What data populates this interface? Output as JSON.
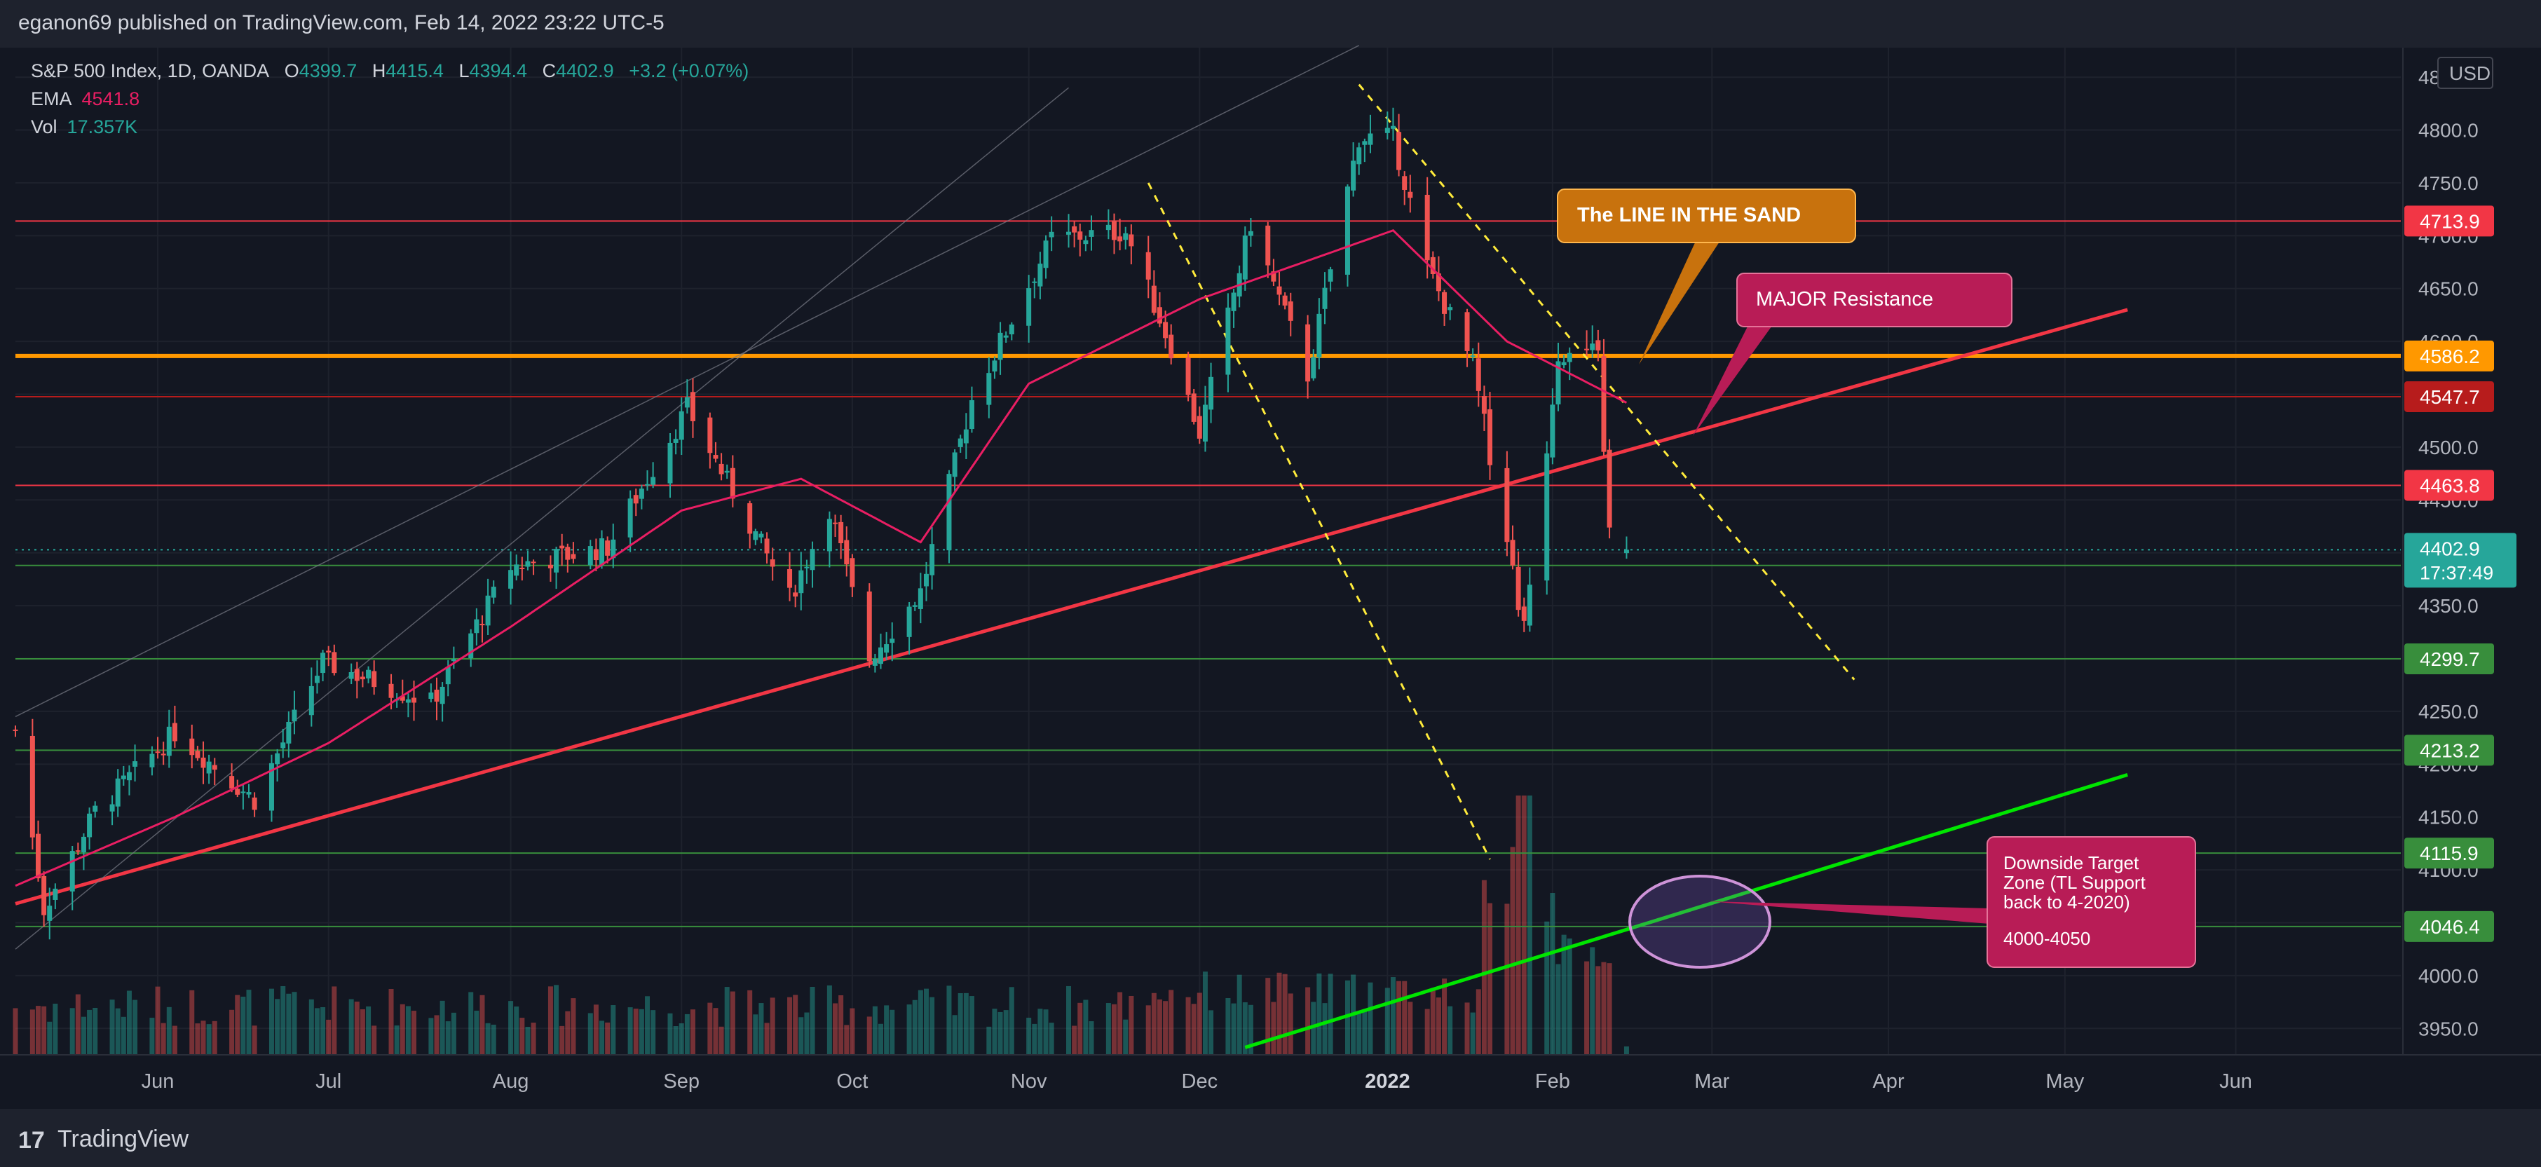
{
  "header": {
    "publisher": "eganon69 published on TradingView.com, Feb 14, 2022 23:22 UTC-5"
  },
  "legend": {
    "symbol": "S&P 500 Index, 1D, OANDA",
    "o_label": "O",
    "o": "4399.7",
    "h_label": "H",
    "h": "4415.4",
    "l_label": "L",
    "l": "4394.4",
    "c_label": "C",
    "c": "4402.9",
    "change": "+3.2 (+0.07%)",
    "ema_label": "EMA",
    "ema": "4541.8",
    "vol_label": "Vol",
    "vol": "17.357K"
  },
  "footer": {
    "brand": "TradingView",
    "logo_mark": "17"
  },
  "colors": {
    "background": "#131722",
    "up": "#26a69a",
    "down": "#ef5350",
    "ema": "#e91e63",
    "resistance_red": "#f23645",
    "sand_orange": "#ff9800",
    "support_green": "#4caf50",
    "target_green": "#00e600",
    "grid": "#1e222d",
    "axis_text": "#b2b5be"
  },
  "chart_data": {
    "type": "candlestick",
    "title": "S&P 500 Index, 1D, OANDA",
    "currency": "USD",
    "ylim": [
      3925,
      4860
    ],
    "y_ticks": [
      3950,
      4000,
      4050,
      4100,
      4150,
      4200,
      4250,
      4300,
      4350,
      4400,
      4450,
      4500,
      4550,
      4600,
      4650,
      4700,
      4750,
      4800,
      4850
    ],
    "y_tick_labels": [
      "3950.0",
      "4000.0",
      "4050.0",
      "4100.0",
      "4150.0",
      "4200.0",
      "4250.0",
      "4300.0",
      "4350.0",
      "4400.0",
      "4450.0",
      "4500.0",
      "4550.0",
      "4600.0",
      "4650.0",
      "4700.0",
      "4750.0",
      "4800.0",
      "4850.0"
    ],
    "x_labels": [
      {
        "date": "2021-06-01",
        "label": "Jun"
      },
      {
        "date": "2021-07-01",
        "label": "Jul"
      },
      {
        "date": "2021-08-02",
        "label": "Aug"
      },
      {
        "date": "2021-09-01",
        "label": "Sep"
      },
      {
        "date": "2021-10-01",
        "label": "Oct"
      },
      {
        "date": "2021-11-01",
        "label": "Nov"
      },
      {
        "date": "2021-12-01",
        "label": "Dec"
      },
      {
        "date": "2022-01-03",
        "label": "2022"
      },
      {
        "date": "2022-02-01",
        "label": "Feb"
      },
      {
        "date": "2022-03-01",
        "label": "Mar"
      },
      {
        "date": "2022-04-01",
        "label": "Apr"
      },
      {
        "date": "2022-05-02",
        "label": "May"
      },
      {
        "date": "2022-06-01",
        "label": "Jun"
      }
    ],
    "x_range": [
      "2021-05-07",
      "2022-06-30"
    ],
    "price_anchors": [
      [
        "2021-05-07",
        4232
      ],
      [
        "2021-05-12",
        4063
      ],
      [
        "2021-05-21",
        4155
      ],
      [
        "2021-06-04",
        4230
      ],
      [
        "2021-06-18",
        4166
      ],
      [
        "2021-06-30",
        4297
      ],
      [
        "2021-07-19",
        4258
      ],
      [
        "2021-08-02",
        4387
      ],
      [
        "2021-08-19",
        4405
      ],
      [
        "2021-09-02",
        4537
      ],
      [
        "2021-09-20",
        4357
      ],
      [
        "2021-09-27",
        4443
      ],
      [
        "2021-10-04",
        4300
      ],
      [
        "2021-10-13",
        4363
      ],
      [
        "2021-10-22",
        4545
      ],
      [
        "2021-11-05",
        4697
      ],
      [
        "2021-11-18",
        4704
      ],
      [
        "2021-11-26",
        4594
      ],
      [
        "2021-12-01",
        4513
      ],
      [
        "2021-12-10",
        4712
      ],
      [
        "2021-12-20",
        4568
      ],
      [
        "2021-12-29",
        4793
      ],
      [
        "2022-01-04",
        4793
      ],
      [
        "2022-01-10",
        4670
      ],
      [
        "2022-01-18",
        4577
      ],
      [
        "2022-01-24",
        4410
      ],
      [
        "2022-01-27",
        4326
      ],
      [
        "2022-02-02",
        4589
      ],
      [
        "2022-02-09",
        4587
      ],
      [
        "2022-02-11",
        4418
      ],
      [
        "2022-02-14",
        4402
      ]
    ],
    "ema_anchors": [
      [
        "2021-05-07",
        4085
      ],
      [
        "2021-06-04",
        4150
      ],
      [
        "2021-07-01",
        4220
      ],
      [
        "2021-08-02",
        4330
      ],
      [
        "2021-09-01",
        4440
      ],
      [
        "2021-09-22",
        4470
      ],
      [
        "2021-10-13",
        4410
      ],
      [
        "2021-11-01",
        4560
      ],
      [
        "2021-12-01",
        4640
      ],
      [
        "2022-01-04",
        4705
      ],
      [
        "2022-01-24",
        4600
      ],
      [
        "2022-02-14",
        4542
      ]
    ],
    "last": {
      "open": 4399.7,
      "high": 4415.4,
      "low": 4394.4,
      "close": 4402.9,
      "change": 3.2,
      "change_pct": 0.07,
      "ema": 4541.8,
      "vol": "17.357K"
    },
    "levels": [
      {
        "value": 4713.9,
        "label": "4713.9",
        "color": "#f23645"
      },
      {
        "value": 4586.2,
        "label": "4586.2",
        "color": "#ff9800"
      },
      {
        "value": 4547.7,
        "label": "4547.7",
        "color": "#b71c1c"
      },
      {
        "value": 4463.8,
        "label": "4463.8",
        "color": "#f23645"
      },
      {
        "value": 4388.0,
        "label": "4388.0",
        "color": "#388e3c"
      },
      {
        "value": 4299.7,
        "label": "4299.7",
        "color": "#388e3c"
      },
      {
        "value": 4213.2,
        "label": "4213.2",
        "color": "#388e3c"
      },
      {
        "value": 4115.9,
        "label": "4115.9",
        "color": "#388e3c"
      },
      {
        "value": 4046.4,
        "label": "4046.4",
        "color": "#388e3c"
      }
    ],
    "current_price_label": "4402.9",
    "countdown_label": "17:37:49",
    "trendlines": [
      {
        "name": "support-trendline",
        "color": "#f23645",
        "from": [
          "2021-05-07",
          4068
        ],
        "to": [
          "2022-05-13",
          4630
        ]
      },
      {
        "name": "target-trendline",
        "color": "#00e600",
        "from": [
          "2021-12-09",
          3932
        ],
        "to": [
          "2022-05-13",
          4190
        ]
      },
      {
        "name": "upper-dashed-line",
        "color": "#ffeb3b",
        "from": [
          "2021-11-22",
          4750
        ],
        "to": [
          "2022-01-21",
          4110
        ]
      },
      {
        "name": "lower-dashed-line",
        "color": "#ffeb3b",
        "from": [
          "2021-12-29",
          4843
        ],
        "to": [
          "2022-03-26",
          4280
        ]
      },
      {
        "name": "upper-channel-line",
        "color": "#787b86",
        "from": [
          "2021-05-07",
          4245
        ],
        "to": [
          "2021-12-29",
          4880
        ]
      },
      {
        "name": "lower-channel-line",
        "color": "#787b86",
        "from": [
          "2021-05-07",
          4025
        ],
        "to": [
          "2021-11-08",
          4840
        ]
      }
    ],
    "annotations": [
      {
        "name": "line-in-the-sand-callout",
        "text": "The LINE IN THE SAND",
        "color": "#c8720d"
      },
      {
        "name": "major-resistance-callout",
        "text": "MAJOR Resistance",
        "color": "#b81c56"
      },
      {
        "name": "target-zone-callout",
        "text": "Downside Target Zone (TL Support back to 4-2020)",
        "text2": "4000-4050",
        "color": "#b81c56"
      }
    ]
  }
}
